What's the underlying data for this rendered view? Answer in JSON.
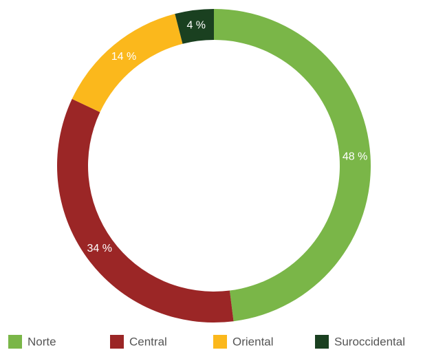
{
  "chart_data": {
    "type": "pie",
    "donut": true,
    "categories": [
      "Norte",
      "Central",
      "Oriental",
      "Suroccidental"
    ],
    "values": [
      48,
      34,
      14,
      4
    ],
    "value_labels": [
      "48 %",
      "34 %",
      "14 %",
      "4 %"
    ],
    "colors": [
      "#7ab648",
      "#9b2626",
      "#fbb81c",
      "#1a4020"
    ],
    "legend": "bottom"
  }
}
